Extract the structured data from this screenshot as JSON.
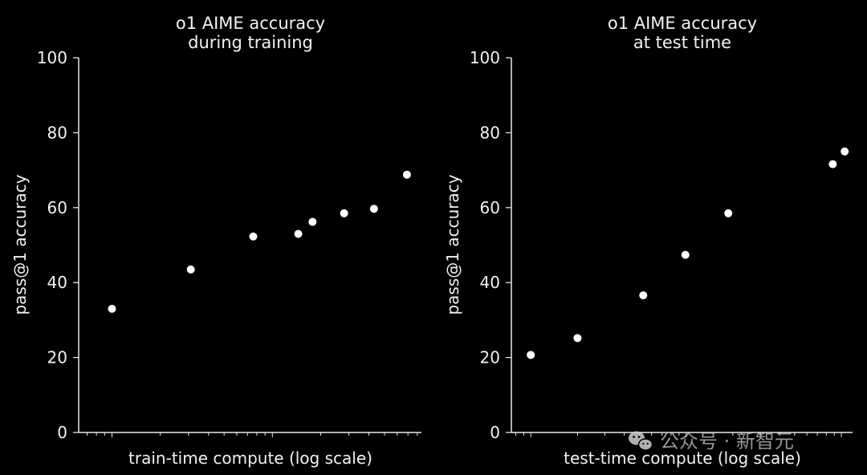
{
  "chart_data": [
    {
      "type": "scatter",
      "title_lines": [
        "o1 AIME accuracy",
        "during training"
      ],
      "xlabel": "train-time compute (log scale)",
      "ylabel": "pass@1 accuracy",
      "xscale": "log",
      "ylim": [
        0,
        100
      ],
      "yticks": [
        0,
        20,
        40,
        60,
        80,
        100
      ],
      "grid": false,
      "points": [
        {
          "x": 1.0,
          "y": 33
        },
        {
          "x": 3.1,
          "y": 43.5
        },
        {
          "x": 7.6,
          "y": 52.3
        },
        {
          "x": 14.5,
          "y": 53
        },
        {
          "x": 17.8,
          "y": 56.2
        },
        {
          "x": 28.0,
          "y": 58.5
        },
        {
          "x": 43.0,
          "y": 59.7
        },
        {
          "x": 69.0,
          "y": 68.8
        }
      ]
    },
    {
      "type": "scatter",
      "title_lines": [
        "o1 AIME accuracy",
        "at test time"
      ],
      "xlabel": "test-time compute (log scale)",
      "ylabel": "pass@1 accuracy",
      "xscale": "log",
      "ylim": [
        0,
        100
      ],
      "yticks": [
        0,
        20,
        40,
        60,
        80,
        100
      ],
      "grid": false,
      "points": [
        {
          "x": 1.0,
          "y": 20.7
        },
        {
          "x": 2.0,
          "y": 25.2
        },
        {
          "x": 5.3,
          "y": 36.6
        },
        {
          "x": 9.9,
          "y": 47.4
        },
        {
          "x": 18.7,
          "y": 58.5
        },
        {
          "x": 88.0,
          "y": 71.6
        },
        {
          "x": 105.0,
          "y": 75
        }
      ]
    }
  ],
  "watermark": {
    "text": "公众号 · 新智元",
    "icon": "wechat-icon"
  }
}
